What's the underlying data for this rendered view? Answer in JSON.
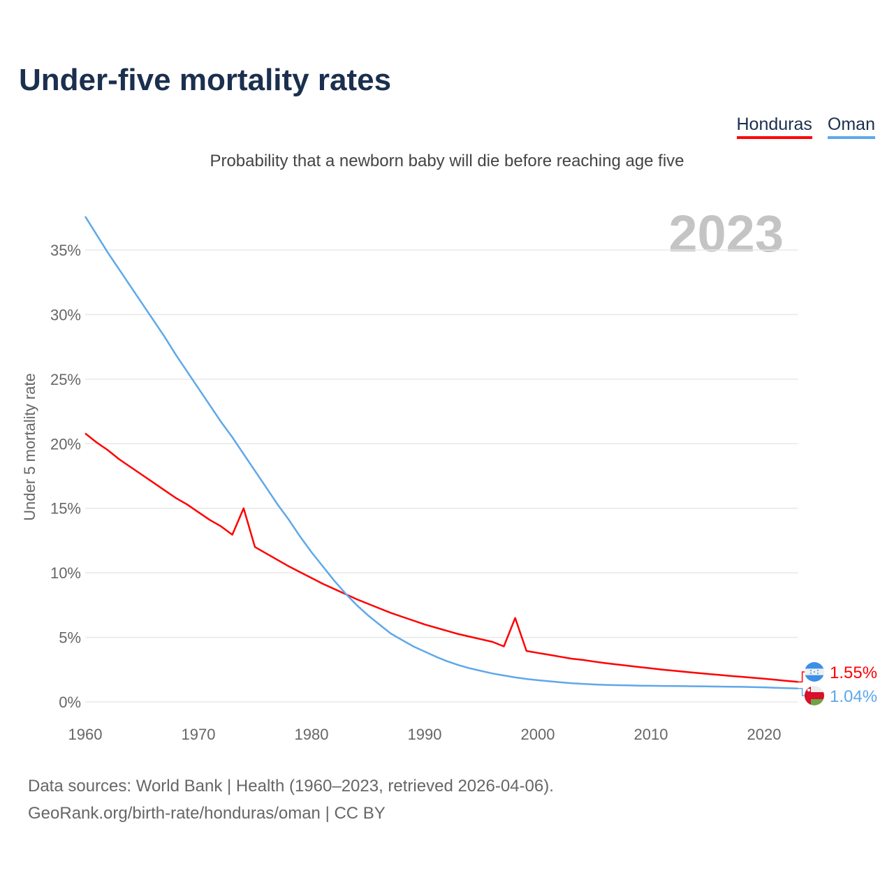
{
  "title": "Under-five mortality rates",
  "subtitle": "Probability that a newborn baby will die before reaching age five",
  "legend": [
    {
      "name": "Honduras",
      "color": "#ff0000"
    },
    {
      "name": "Oman",
      "color": "#5ea8ea"
    }
  ],
  "year_label": "2023",
  "footer": {
    "line1": "Data sources: World Bank | Health (1960–2023, retrieved 2026-04-06).",
    "line2": "GeoRank.org/birth-rate/honduras/oman | CC BY"
  },
  "chart_data": {
    "type": "line",
    "title": "Under-five mortality rates",
    "xlabel": "",
    "ylabel": "Under 5 mortality rate",
    "xlim": [
      1960,
      2023
    ],
    "ylim": [
      0,
      37.6
    ],
    "yticks": [
      0,
      5,
      10,
      15,
      20,
      25,
      30,
      35
    ],
    "ytick_labels": [
      "0%",
      "5%",
      "10%",
      "15%",
      "20%",
      "25%",
      "30%",
      "35%"
    ],
    "xticks": [
      1960,
      1970,
      1980,
      1990,
      2000,
      2010,
      2020
    ],
    "grid": true,
    "legend_position": "top-right",
    "x_start": 1960,
    "series": [
      {
        "name": "Honduras",
        "color": "#ff0000",
        "end_label": "1.55%",
        "values": [
          20.8,
          20.1,
          19.5,
          18.8,
          18.2,
          17.6,
          17.0,
          16.4,
          15.8,
          15.3,
          14.7,
          14.1,
          13.6,
          12.95,
          15.0,
          12.0,
          11.5,
          11.0,
          10.5,
          10.05,
          9.6,
          9.15,
          8.75,
          8.35,
          7.95,
          7.6,
          7.25,
          6.9,
          6.6,
          6.3,
          6.0,
          5.75,
          5.5,
          5.25,
          5.05,
          4.85,
          4.65,
          4.3,
          6.5,
          3.95,
          3.8,
          3.65,
          3.5,
          3.35,
          3.25,
          3.12,
          3.0,
          2.9,
          2.8,
          2.7,
          2.6,
          2.5,
          2.42,
          2.33,
          2.25,
          2.17,
          2.1,
          2.02,
          1.95,
          1.87,
          1.8,
          1.72,
          1.63,
          1.55
        ]
      },
      {
        "name": "Oman",
        "color": "#5ea8ea",
        "end_label": "1.04%",
        "values": [
          37.6,
          36.2,
          34.8,
          33.5,
          32.2,
          30.9,
          29.6,
          28.3,
          26.9,
          25.6,
          24.3,
          23.0,
          21.7,
          20.5,
          19.2,
          17.9,
          16.6,
          15.3,
          14.1,
          12.8,
          11.6,
          10.5,
          9.4,
          8.4,
          7.5,
          6.7,
          6.0,
          5.3,
          4.8,
          4.3,
          3.9,
          3.5,
          3.15,
          2.85,
          2.6,
          2.4,
          2.2,
          2.05,
          1.9,
          1.78,
          1.68,
          1.6,
          1.52,
          1.45,
          1.4,
          1.35,
          1.32,
          1.3,
          1.28,
          1.26,
          1.25,
          1.24,
          1.23,
          1.22,
          1.21,
          1.2,
          1.19,
          1.18,
          1.17,
          1.15,
          1.13,
          1.1,
          1.07,
          1.04
        ]
      }
    ]
  }
}
